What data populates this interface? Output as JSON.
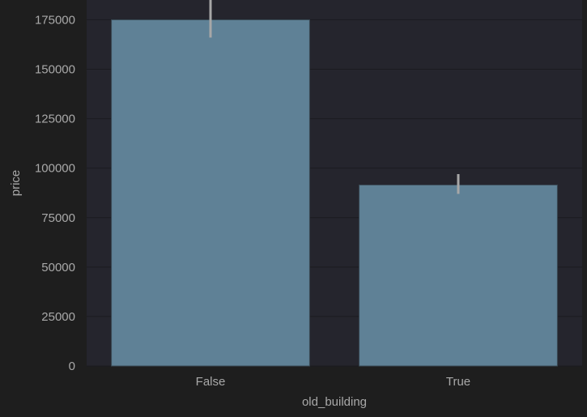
{
  "chart_data": {
    "type": "bar",
    "categories": [
      "False",
      "True"
    ],
    "values": [
      175000,
      91500
    ],
    "error_bars": [
      [
        166000,
        185000
      ],
      [
        87000,
        97000
      ]
    ],
    "xlabel": "old_building",
    "ylabel": "price",
    "ylim": [
      0,
      185000
    ],
    "yticks": [
      0,
      25000,
      50000,
      75000,
      100000,
      125000,
      150000,
      175000
    ],
    "grid": true,
    "colors": {
      "page_background": "#1e1e1e",
      "plot_background": "#25252d",
      "grid": "#1b1b20",
      "bar_fill": "#5f8196",
      "bar_edge": "#3a4a55",
      "error_bar": "#a7a7a7",
      "text": "#a9a9a9"
    }
  }
}
